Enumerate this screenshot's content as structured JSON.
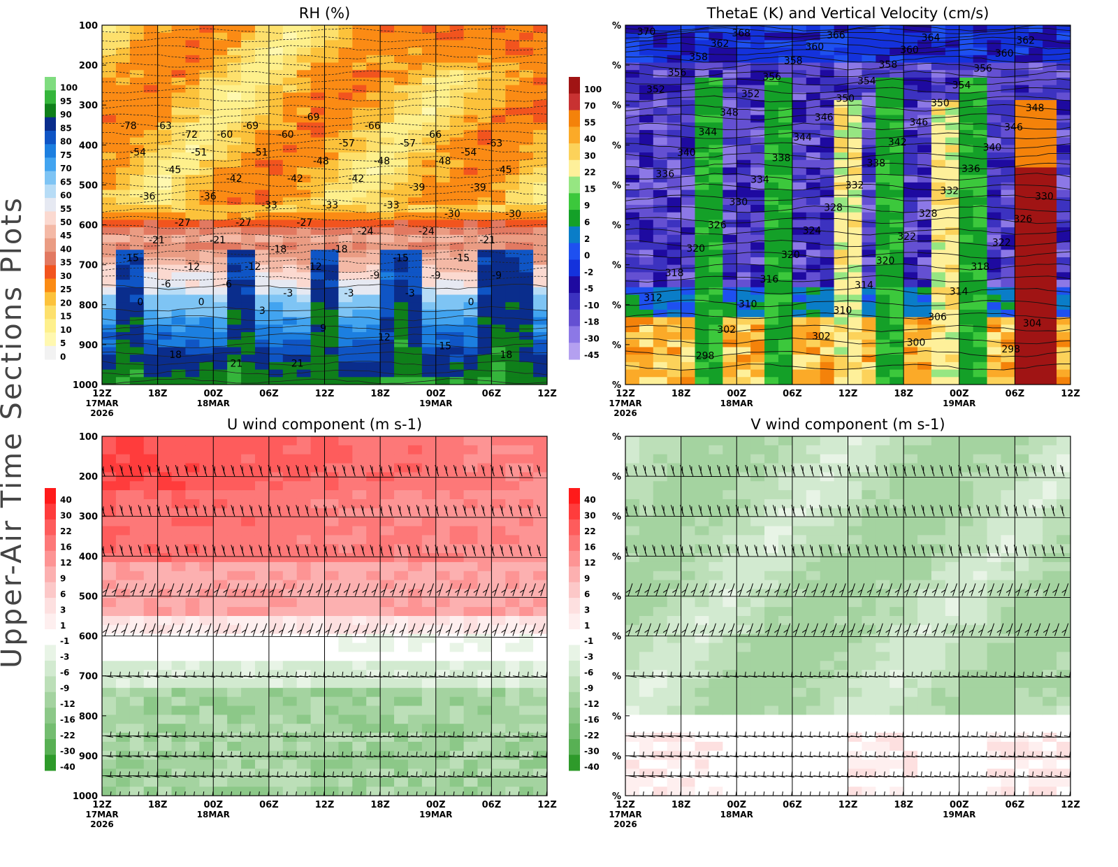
{
  "figure": {
    "side_title": "Upper-Air Time Sections Plots"
  },
  "chart_data": [
    {
      "type": "heatmap",
      "title": "RH (%)",
      "x_ticks": [
        "12Z",
        "18Z",
        "00Z",
        "06Z",
        "12Z",
        "18Z",
        "00Z",
        "06Z",
        "12Z"
      ],
      "x_dates": [
        "17MAR",
        "",
        "18MAR",
        "",
        "",
        "",
        "19MAR",
        "",
        ""
      ],
      "x_year": "2026",
      "y_ticks": [
        "100",
        "200",
        "300",
        "400",
        "500",
        "600",
        "700",
        "800",
        "900",
        "1000"
      ],
      "ylim": [
        100,
        1000
      ],
      "colorbar": [
        "100",
        "95",
        "90",
        "85",
        "80",
        "75",
        "70",
        "65",
        "60",
        "55",
        "50",
        "45",
        "40",
        "35",
        "30",
        "25",
        "20",
        "15",
        "10",
        "5",
        "0"
      ],
      "colorbar_colors": [
        "#7fdc7f",
        "#35b53b",
        "#0f7f1a",
        "#0a2d8c",
        "#0f55c5",
        "#1c7fe0",
        "#42a4f0",
        "#7ec4f4",
        "#b7dcf6",
        "#e6e9f2",
        "#fbd9d0",
        "#f4b9a6",
        "#ea9c83",
        "#e27961",
        "#f2541e",
        "#fb8b14",
        "#fcc23b",
        "#fde06c",
        "#fef08c",
        "#fff8b0",
        "#f2f2f2"
      ],
      "isotherm_labels": [
        {
          "t": "-78",
          "i": 11
        },
        {
          "t": "-72",
          "i": 12
        },
        {
          "t": "-69",
          "i": 11
        },
        {
          "t": "-69",
          "i": 10
        },
        {
          "t": "-66",
          "i": 11
        },
        {
          "t": "-66",
          "i": 12
        },
        {
          "t": "-63",
          "i": 13
        },
        {
          "t": "-63",
          "i": 11
        },
        {
          "t": "-60",
          "i": 12
        },
        {
          "t": "-60",
          "i": 12
        },
        {
          "t": "-57",
          "i": 13
        },
        {
          "t": "-57",
          "i": 13
        },
        {
          "t": "-54",
          "i": 14
        },
        {
          "t": "-54",
          "i": 14
        },
        {
          "t": "-51",
          "i": 14
        },
        {
          "t": "-51",
          "i": 14
        },
        {
          "t": "-48",
          "i": 15
        },
        {
          "t": "-48",
          "i": 15
        },
        {
          "t": "-48",
          "i": 15
        },
        {
          "t": "-45",
          "i": 16
        },
        {
          "t": "-45",
          "i": 16
        },
        {
          "t": "-42",
          "i": 17
        },
        {
          "t": "-42",
          "i": 17
        },
        {
          "t": "-42",
          "i": 17
        },
        {
          "t": "-39",
          "i": 18
        },
        {
          "t": "-39",
          "i": 18
        },
        {
          "t": "-36",
          "i": 19
        },
        {
          "t": "-36",
          "i": 19
        },
        {
          "t": "-33",
          "i": 20
        },
        {
          "t": "-33",
          "i": 20
        },
        {
          "t": "-33",
          "i": 20
        },
        {
          "t": "-30",
          "i": 21
        },
        {
          "t": "-30",
          "i": 21
        },
        {
          "t": "-27",
          "i": 22
        },
        {
          "t": "-27",
          "i": 22
        },
        {
          "t": "-27",
          "i": 22
        },
        {
          "t": "-24",
          "i": 23
        },
        {
          "t": "-24",
          "i": 23
        },
        {
          "t": "-21",
          "i": 24
        },
        {
          "t": "-21",
          "i": 24
        },
        {
          "t": "-21",
          "i": 24
        },
        {
          "t": "-18",
          "i": 25
        },
        {
          "t": "-18",
          "i": 25
        },
        {
          "t": "-15",
          "i": 26
        },
        {
          "t": "-15",
          "i": 26
        },
        {
          "t": "-15",
          "i": 26
        },
        {
          "t": "-12",
          "i": 27
        },
        {
          "t": "-12",
          "i": 27
        },
        {
          "t": "-12",
          "i": 27
        },
        {
          "t": "-9",
          "i": 28
        },
        {
          "t": "-9",
          "i": 28
        },
        {
          "t": "-9",
          "i": 28
        },
        {
          "t": "-6",
          "i": 29
        },
        {
          "t": "-6",
          "i": 29
        },
        {
          "t": "-3",
          "i": 30
        },
        {
          "t": "-3",
          "i": 30
        },
        {
          "t": "-3",
          "i": 30
        },
        {
          "t": "0",
          "i": 31
        },
        {
          "t": "0",
          "i": 31
        },
        {
          "t": "0",
          "i": 31
        },
        {
          "t": "3",
          "i": 32
        },
        {
          "t": "9",
          "i": 34
        },
        {
          "t": "12",
          "i": 35
        },
        {
          "t": "15",
          "i": 36
        },
        {
          "t": "18",
          "i": 37
        },
        {
          "t": "18",
          "i": 37
        },
        {
          "t": "21",
          "i": 38
        },
        {
          "t": "21",
          "i": 38
        }
      ]
    },
    {
      "type": "heatmap",
      "title": "ThetaE (K) and Vertical Velocity (cm/s)",
      "x_ticks": [
        "12Z",
        "18Z",
        "00Z",
        "06Z",
        "12Z",
        "18Z",
        "00Z",
        "06Z",
        "12Z"
      ],
      "x_dates": [
        "17MAR",
        "",
        "18MAR",
        "",
        "",
        "",
        "19MAR",
        "",
        ""
      ],
      "x_year": "2026",
      "y_ticks": [
        "%",
        "%",
        "%",
        "%",
        "%",
        "%",
        "%",
        "%",
        "%",
        "%"
      ],
      "colorbar": [
        "100",
        "70",
        "55",
        "40",
        "30",
        "22",
        "15",
        "9",
        "6",
        "2",
        "0",
        "-2",
        "-5",
        "-10",
        "-18",
        "-30",
        "-45"
      ],
      "colorbar_colors": [
        "#a01414",
        "#c83232",
        "#f4820a",
        "#fbaa28",
        "#fcd25a",
        "#fef09a",
        "#96e682",
        "#3cc83c",
        "#14a028",
        "#0a7dc8",
        "#1e50f0",
        "#1432dc",
        "#1e0aa0",
        "#3c32c0",
        "#6450d2",
        "#8c78e6",
        "#b4a0f0"
      ],
      "theta_labels": [
        "370",
        "368",
        "366",
        "364",
        "362",
        "362",
        "360",
        "360",
        "360",
        "358",
        "358",
        "358",
        "356",
        "356",
        "356",
        "354",
        "354",
        "352",
        "352",
        "350",
        "350",
        "348",
        "348",
        "346",
        "346",
        "346",
        "344",
        "344",
        "342",
        "340",
        "340",
        "338",
        "338",
        "336",
        "336",
        "334",
        "332",
        "332",
        "330",
        "330",
        "328",
        "328",
        "326",
        "326",
        "324",
        "322",
        "322",
        "320",
        "320",
        "320",
        "318",
        "318",
        "316",
        "314",
        "314",
        "312",
        "310",
        "310",
        "306",
        "304",
        "302",
        "302",
        "300",
        "298",
        "298"
      ]
    },
    {
      "type": "heatmap",
      "title": "U wind component (m s-1)",
      "x_ticks": [
        "12Z",
        "18Z",
        "00Z",
        "06Z",
        "12Z",
        "18Z",
        "00Z",
        "06Z",
        "12Z"
      ],
      "x_dates": [
        "17MAR",
        "",
        "18MAR",
        "",
        "",
        "",
        "19MAR",
        "",
        ""
      ],
      "x_year": "2026",
      "y_ticks": [
        "100",
        "200",
        "300",
        "400",
        "500",
        "600",
        "700",
        "800",
        "900",
        "1000"
      ],
      "ylim": [
        100,
        1000
      ],
      "colorbar": [
        "40",
        "30",
        "22",
        "16",
        "12",
        "9",
        "6",
        "3",
        "1",
        "-1",
        "-3",
        "-6",
        "-9",
        "-12",
        "-16",
        "-22",
        "-30",
        "-40"
      ],
      "colorbar_colors": [
        "#ff1a1a",
        "#ff3c3c",
        "#fe5c5c",
        "#fd7878",
        "#fd9494",
        "#fcb0b0",
        "#fcc8c8",
        "#fde0e0",
        "#feefef",
        "#ffffff",
        "#e8f4e6",
        "#d2ead0",
        "#bcdfb8",
        "#a4d3a0",
        "#8cc888",
        "#74bd70",
        "#58b054",
        "#2e9a2a"
      ],
      "barb_levels_hpa": [
        200,
        300,
        400,
        500,
        600,
        700,
        850,
        900,
        950,
        1000
      ]
    },
    {
      "type": "heatmap",
      "title": "V wind component (m s-1)",
      "x_ticks": [
        "12Z",
        "18Z",
        "00Z",
        "06Z",
        "12Z",
        "18Z",
        "00Z",
        "06Z",
        "12Z"
      ],
      "x_dates": [
        "17MAR",
        "",
        "18MAR",
        "",
        "",
        "",
        "19MAR",
        "",
        ""
      ],
      "x_year": "2026",
      "y_ticks": [
        "%",
        "%",
        "%",
        "%",
        "%",
        "%",
        "%",
        "%",
        "%",
        "%"
      ],
      "colorbar": [
        "40",
        "30",
        "22",
        "16",
        "12",
        "9",
        "6",
        "3",
        "1",
        "-1",
        "-3",
        "-6",
        "-9",
        "-12",
        "-16",
        "-22",
        "-30",
        "-40"
      ],
      "colorbar_colors": [
        "#ff1a1a",
        "#ff3c3c",
        "#fe5c5c",
        "#fd7878",
        "#fd9494",
        "#fcb0b0",
        "#fcc8c8",
        "#fde0e0",
        "#feefef",
        "#ffffff",
        "#e8f4e6",
        "#d2ead0",
        "#bcdfb8",
        "#a4d3a0",
        "#8cc888",
        "#74bd70",
        "#58b054",
        "#2e9a2a"
      ],
      "barb_levels_hpa": [
        200,
        300,
        400,
        500,
        600,
        700,
        850,
        900,
        950,
        1000
      ]
    }
  ]
}
